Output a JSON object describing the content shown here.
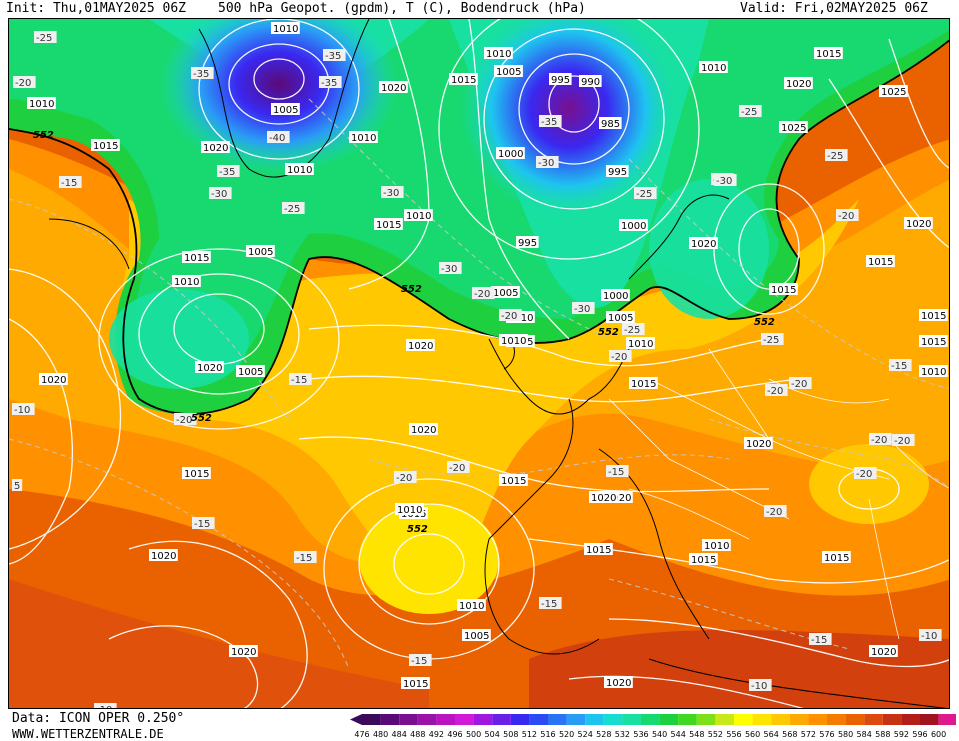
{
  "header": {
    "init": "Init: Thu,01MAY2025 06Z",
    "title": "500 hPa Geopot. (gpdm), T (C), Bodendruck (hPa)",
    "valid": "Valid: Fri,02MAY2025 06Z"
  },
  "footer": {
    "source": "Data: ICON OPER 0.250°",
    "website": "WWW.WETTERZENTRALE.DE"
  },
  "legend": {
    "levels": [
      "476",
      "480",
      "484",
      "488",
      "492",
      "496",
      "500",
      "504",
      "508",
      "512",
      "516",
      "520",
      "524",
      "528",
      "532",
      "536",
      "540",
      "544",
      "548",
      "552",
      "556",
      "560",
      "564",
      "568",
      "572",
      "576",
      "580",
      "584",
      "588",
      "592",
      "596",
      "600"
    ],
    "colors": [
      "#3c0a5a",
      "#5a0a78",
      "#78108f",
      "#9a12a8",
      "#b815c0",
      "#d218d8",
      "#a018e0",
      "#6a1ee8",
      "#3a28f0",
      "#2a4cf2",
      "#2a74f4",
      "#2a9cf6",
      "#1ec4f0",
      "#18dcd0",
      "#18e0a0",
      "#18d870",
      "#1ed040",
      "#40d820",
      "#80e018",
      "#c8e818",
      "#ffff00",
      "#ffe400",
      "#ffc800",
      "#ffaa00",
      "#ff9000",
      "#f57a00",
      "#ea6200",
      "#dc4a10",
      "#c83214",
      "#b41e18",
      "#a01420",
      "#e01890"
    ]
  },
  "map_labels": {
    "pressure": [
      {
        "text": "1010"
      },
      {
        "text": "1010"
      },
      {
        "text": "1015"
      },
      {
        "text": "1005"
      },
      {
        "text": "1020"
      },
      {
        "text": "1010"
      },
      {
        "text": "1015"
      },
      {
        "text": "1005"
      },
      {
        "text": "1000"
      },
      {
        "text": "1010"
      },
      {
        "text": "1005"
      },
      {
        "text": "1020"
      },
      {
        "text": "1015"
      },
      {
        "text": "1010"
      },
      {
        "text": "1020"
      },
      {
        "text": "1015"
      },
      {
        "text": "1010"
      },
      {
        "text": "1010"
      },
      {
        "text": "1005"
      },
      {
        "text": "995"
      },
      {
        "text": "990"
      },
      {
        "text": "985"
      },
      {
        "text": "1000"
      },
      {
        "text": "995"
      },
      {
        "text": "995"
      },
      {
        "text": "1005"
      },
      {
        "text": "1010"
      },
      {
        "text": "1015"
      },
      {
        "text": "1000"
      },
      {
        "text": "1005"
      },
      {
        "text": "1010"
      },
      {
        "text": "1015"
      },
      {
        "text": "1020"
      },
      {
        "text": "1010"
      },
      {
        "text": "1015"
      },
      {
        "text": "1020"
      },
      {
        "text": "1025"
      },
      {
        "text": "1025"
      },
      {
        "text": "1020"
      },
      {
        "text": "1015"
      },
      {
        "text": "1020"
      },
      {
        "text": "1015"
      },
      {
        "text": "1015"
      },
      {
        "text": "1015"
      },
      {
        "text": "1010"
      },
      {
        "text": "1020"
      },
      {
        "text": "1020"
      },
      {
        "text": "1015"
      },
      {
        "text": "1020"
      },
      {
        "text": "1020"
      },
      {
        "text": "1015"
      },
      {
        "text": "1020"
      },
      {
        "text": "1015"
      },
      {
        "text": "1010"
      },
      {
        "text": "1005"
      },
      {
        "text": "1010"
      },
      {
        "text": "1015"
      },
      {
        "text": "1020"
      },
      {
        "text": "1015"
      },
      {
        "text": "1020"
      },
      {
        "text": "1020"
      },
      {
        "text": "1010"
      },
      {
        "text": "1005"
      },
      {
        "text": "1015"
      },
      {
        "text": "1015"
      },
      {
        "text": "1020"
      },
      {
        "text": "1010"
      }
    ],
    "temperature": [
      {
        "text": "-25"
      },
      {
        "text": "-20"
      },
      {
        "text": "-35"
      },
      {
        "text": "-35"
      },
      {
        "text": "-40"
      },
      {
        "text": "-35"
      },
      {
        "text": "-30"
      },
      {
        "text": "-25"
      },
      {
        "text": "-30"
      },
      {
        "text": "-35"
      },
      {
        "text": "-30"
      },
      {
        "text": "-25"
      },
      {
        "text": "-20"
      },
      {
        "text": "-30"
      },
      {
        "text": "-35"
      },
      {
        "text": "-25"
      },
      {
        "text": "-30"
      },
      {
        "text": "-25"
      },
      {
        "text": "-20"
      },
      {
        "text": "-15"
      },
      {
        "text": "-20"
      },
      {
        "text": "-10"
      },
      {
        "text": "-15"
      },
      {
        "text": "-20"
      },
      {
        "text": "-20"
      },
      {
        "text": "-30"
      },
      {
        "text": "-20"
      },
      {
        "text": "-25"
      },
      {
        "text": "-20"
      },
      {
        "text": "-15"
      },
      {
        "text": "-15"
      },
      {
        "text": "-20"
      },
      {
        "text": "-20"
      },
      {
        "text": "-20"
      },
      {
        "text": "-20"
      },
      {
        "text": "-15"
      },
      {
        "text": "-20"
      },
      {
        "text": "-15"
      },
      {
        "text": "-10"
      },
      {
        "text": "-15"
      },
      {
        "text": "-15"
      },
      {
        "text": "-10"
      },
      {
        "text": "-10"
      },
      {
        "text": "-15"
      },
      {
        "text": "-30"
      },
      {
        "text": "-25"
      },
      {
        "text": "-20"
      },
      {
        "text": "5"
      }
    ],
    "geopotential": [
      {
        "text": "552"
      },
      {
        "text": "552"
      },
      {
        "text": "552"
      },
      {
        "text": "552"
      },
      {
        "text": "552"
      },
      {
        "text": "552"
      }
    ]
  }
}
